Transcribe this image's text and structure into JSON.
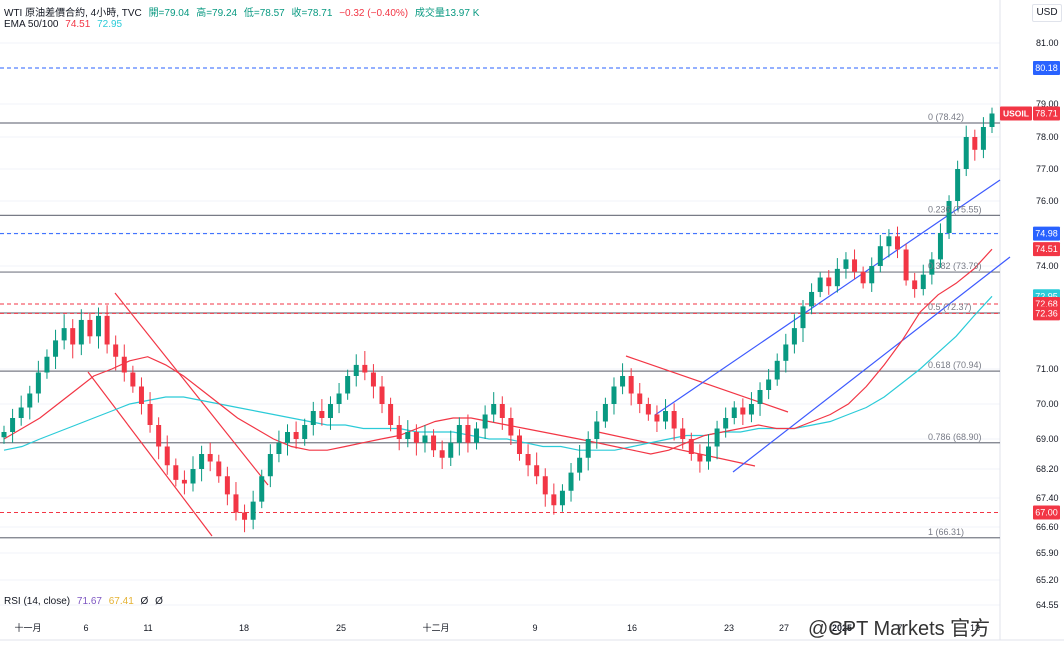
{
  "header": {
    "symbol": "WTI 原油差價合約, 4小時, TVC",
    "open": "開=79.04",
    "high": "高=79.24",
    "low": "低=78.57",
    "close": "收=78.71",
    "change": "−0.32 (−0.40%)",
    "volume": "成交量13.97 K",
    "ema_label": "EMA 50/100",
    "ema50": "74.51",
    "ema100": "72.95"
  },
  "rsi": {
    "label": "RSI (14, close)",
    "v1": "71.67",
    "v2": "67.41",
    "v3": "Ø",
    "v4": "Ø"
  },
  "currency_button": "USD",
  "watermark": "@CPT Markets 官方",
  "colors": {
    "up": "#089981",
    "down": "#f23645",
    "ema50": "#f23645",
    "ema100": "#2bcbd8",
    "blue": "#2962ff",
    "blue_line": "#3d5afe",
    "red_line": "#f23645",
    "gray": "#787b86"
  },
  "chart_data": {
    "type": "candlestick",
    "y_ticks": [
      "81.00",
      "79.00",
      "78.00",
      "77.00",
      "76.00",
      "75.00",
      "74.00",
      "71.00",
      "70.00",
      "69.00",
      "68.20",
      "67.40",
      "66.60",
      "65.90",
      "65.20",
      "64.55"
    ],
    "x_ticks": [
      "十一月",
      "6",
      "11",
      "18",
      "25",
      "十二月",
      "9",
      "16",
      "23",
      "27",
      "2025",
      "7",
      "13"
    ],
    "horizontal_levels": [
      {
        "price": 78.42,
        "style": "solid-gray"
      },
      {
        "price": 75.55,
        "style": "solid-gray"
      },
      {
        "price": 73.79,
        "style": "solid-gray"
      },
      {
        "price": 72.37,
        "style": "solid-gray"
      },
      {
        "price": 70.94,
        "style": "solid-gray"
      },
      {
        "price": 68.9,
        "style": "solid-gray"
      },
      {
        "price": 66.31,
        "style": "solid-gray"
      },
      {
        "price": 80.18,
        "style": "dashed-blue"
      },
      {
        "price": 74.98,
        "style": "dashed-blue"
      },
      {
        "price": 72.36,
        "style": "dashed-red"
      },
      {
        "price": 72.68,
        "style": "dashed-red"
      },
      {
        "price": 67.0,
        "style": "dashed-red"
      }
    ],
    "fib_labels": [
      {
        "text": "0 (78.42)",
        "price": 78.42
      },
      {
        "text": "0.236 (75.55)",
        "price": 75.55
      },
      {
        "text": "0.382 (73.79)",
        "price": 73.79
      },
      {
        "text": "0.5 (72.37)",
        "price": 72.37
      },
      {
        "text": "0.618 (70.94)",
        "price": 70.94
      },
      {
        "text": "0.786 (68.90)",
        "price": 68.9
      },
      {
        "text": "1 (66.31)",
        "price": 66.31
      }
    ],
    "price_tags": [
      {
        "text": "80.18",
        "price": 80.18,
        "color": "#2962ff"
      },
      {
        "text": "78.71",
        "price": 78.71,
        "color": "#f23645",
        "symbol": "USOIL"
      },
      {
        "text": "74.98",
        "price": 74.98,
        "color": "#2962ff"
      },
      {
        "text": "74.51",
        "price": 74.51,
        "color": "#f23645"
      },
      {
        "text": "72.95",
        "price": 72.95,
        "color": "#2bcbd8"
      },
      {
        "text": "72.68",
        "price": 72.68,
        "color": "#f23645"
      },
      {
        "text": "72.36",
        "price": 72.36,
        "color": "#f23645"
      },
      {
        "text": "67.00",
        "price": 67.0,
        "color": "#f23645"
      }
    ],
    "close_series": [
      69.2,
      69.6,
      69.9,
      70.3,
      70.9,
      71.3,
      71.7,
      72.0,
      71.6,
      72.2,
      71.8,
      72.3,
      71.6,
      71.3,
      70.9,
      70.5,
      70.0,
      69.4,
      68.8,
      68.3,
      67.9,
      67.8,
      68.2,
      68.6,
      68.4,
      68.0,
      67.5,
      67.0,
      66.8,
      67.3,
      68.0,
      68.6,
      68.9,
      69.2,
      69.0,
      69.4,
      69.8,
      69.6,
      70.0,
      70.3,
      70.8,
      71.1,
      70.9,
      70.5,
      70.0,
      69.4,
      69.0,
      69.2,
      68.9,
      69.1,
      68.7,
      68.5,
      68.9,
      69.4,
      68.9,
      69.3,
      69.7,
      70.0,
      69.6,
      69.1,
      68.6,
      68.3,
      68.0,
      67.5,
      67.2,
      67.6,
      68.1,
      68.5,
      69.0,
      69.5,
      70.0,
      70.5,
      70.8,
      70.3,
      70.0,
      69.7,
      69.5,
      69.8,
      69.3,
      69.0,
      68.6,
      68.4,
      68.8,
      69.3,
      69.6,
      69.9,
      69.7,
      70.0,
      70.4,
      70.7,
      71.2,
      71.6,
      72.0,
      72.6,
      73.1,
      73.6,
      73.3,
      73.9,
      74.2,
      73.8,
      73.4,
      74.0,
      74.6,
      74.9,
      74.5,
      73.5,
      73.2,
      73.7,
      74.2,
      75.0,
      76.0,
      77.0,
      78.0,
      77.6,
      78.3,
      78.71
    ],
    "ema50": [
      69.0,
      69.3,
      69.6,
      70.0,
      70.4,
      70.8,
      71.0,
      71.2,
      71.3,
      71.1,
      70.8,
      70.4,
      70.0,
      69.6,
      69.3,
      69.0,
      68.8,
      68.7,
      68.7,
      68.8,
      68.9,
      69.0,
      69.1,
      69.3,
      69.5,
      69.6,
      69.6,
      69.5,
      69.4,
      69.3,
      69.2,
      69.1,
      69.0,
      68.9,
      68.8,
      68.7,
      68.6,
      68.7,
      68.9,
      69.1,
      69.2,
      69.3,
      69.4,
      69.3,
      69.3,
      69.5,
      69.7,
      70.0,
      70.5,
      71.1,
      71.7,
      72.4,
      73.0,
      73.4,
      73.9,
      74.51
    ],
    "ema100": [
      68.7,
      68.8,
      69.0,
      69.2,
      69.4,
      69.6,
      69.8,
      70.0,
      70.1,
      70.2,
      70.2,
      70.1,
      70.0,
      69.9,
      69.8,
      69.7,
      69.6,
      69.5,
      69.4,
      69.4,
      69.3,
      69.3,
      69.3,
      69.2,
      69.2,
      69.2,
      69.1,
      69.0,
      69.0,
      68.9,
      68.8,
      68.8,
      68.7,
      68.7,
      68.7,
      68.8,
      68.9,
      69.0,
      69.1,
      69.1,
      69.2,
      69.2,
      69.3,
      69.3,
      69.3,
      69.4,
      69.5,
      69.7,
      69.9,
      70.2,
      70.6,
      71.0,
      71.4,
      71.8,
      72.3,
      72.95
    ]
  }
}
